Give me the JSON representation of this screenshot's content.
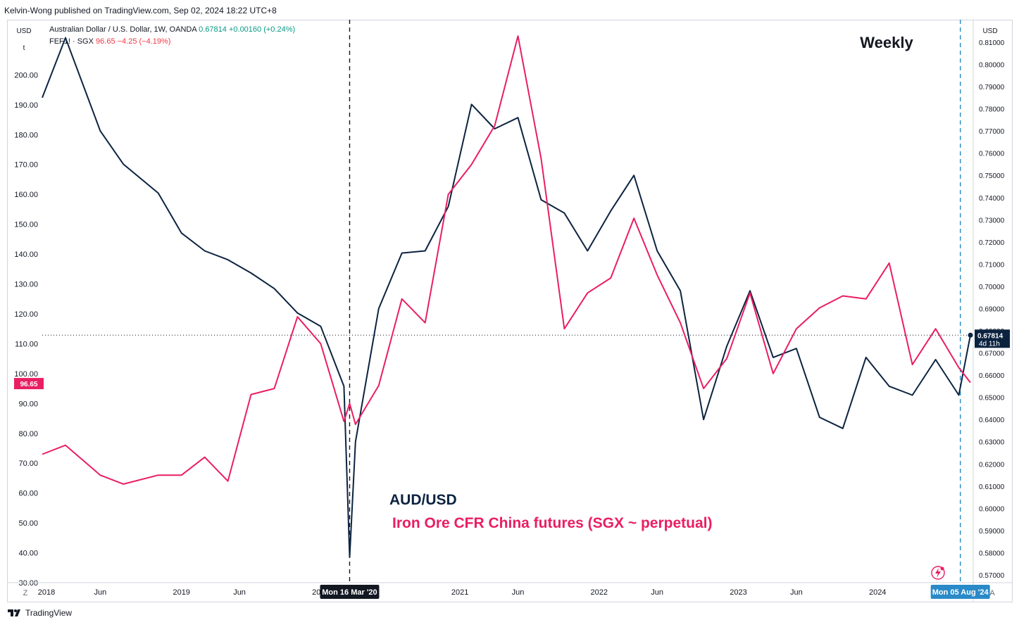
{
  "publisher": "Kelvin-Wong published on TradingView.com, Sep 02, 2024 18:22 UTC+8",
  "left_axis_button": "USD",
  "left_axis_sub": "t",
  "right_axis_button": "USD",
  "legend": {
    "line1_name": "Australian Dollar / U.S. Dollar, 1W, OANDA",
    "line1_price": "0.67814",
    "line1_change": "+0.00160 (+0.24%)",
    "line2_name": "FEF1! · SGX",
    "line2_price": "96.65",
    "line2_change": "−4.25 (−4.19%)"
  },
  "corner_left": "Z",
  "corner_right": "A",
  "footer_brand": "TradingView",
  "colors": {
    "audusd": "#0c2340",
    "iron": "#e91e63",
    "marker": "#2a8ac8",
    "up": "#089981",
    "down": "#f23645"
  },
  "chart_data": {
    "type": "line",
    "title": "Weekly",
    "annotations": [
      "AUD/USD",
      "Iron Ore CFR China futures (SGX ~ perpetual)"
    ],
    "x_tick_labels": [
      "2018",
      "Jun",
      "2019",
      "Jun",
      "2020",
      "Mon 16 Mar '20",
      "2021",
      "Jun",
      "2022",
      "Jun",
      "2023",
      "Jun",
      "2024",
      "Mon 05 Aug '24"
    ],
    "x": [
      "2018-01",
      "2018-03",
      "2018-06",
      "2018-08",
      "2018-11",
      "2019-01",
      "2019-03",
      "2019-05",
      "2019-07",
      "2019-09",
      "2019-11",
      "2020-01",
      "2020-03",
      "2020-03-16",
      "2020-04",
      "2020-06",
      "2020-08",
      "2020-10",
      "2020-12",
      "2021-02",
      "2021-04",
      "2021-06",
      "2021-08",
      "2021-10",
      "2021-12",
      "2022-02",
      "2022-04",
      "2022-06",
      "2022-08",
      "2022-10",
      "2022-12",
      "2023-02",
      "2023-04",
      "2023-06",
      "2023-08",
      "2023-10",
      "2023-12",
      "2024-02",
      "2024-04",
      "2024-06",
      "2024-08",
      "2024-09"
    ],
    "left_axis": {
      "label": "USD",
      "ticks": [
        30,
        40,
        50,
        60,
        70,
        80,
        90,
        100,
        110,
        120,
        130,
        140,
        150,
        160,
        170,
        180,
        190,
        200
      ],
      "ylim": [
        30,
        218
      ]
    },
    "right_axis": {
      "label": "USD",
      "ticks": [
        0.57,
        0.58,
        0.59,
        0.6,
        0.61,
        0.62,
        0.63,
        0.64,
        0.65,
        0.66,
        0.67,
        0.68,
        0.69,
        0.7,
        0.71,
        0.72,
        0.73,
        0.74,
        0.75,
        0.76,
        0.77,
        0.78,
        0.79,
        0.8,
        0.81
      ],
      "tick_labels": [
        "0.57000",
        "0.58000",
        "0.59000",
        "0.60000",
        "0.61000",
        "0.62000",
        "0.63000",
        "0.64000",
        "0.65000",
        "0.66000",
        "0.67000",
        "0.68000",
        "0.69000",
        "0.70000",
        "0.71000",
        "0.72000",
        "0.73000",
        "0.74000",
        "0.75000",
        "0.76000",
        "0.77000",
        "0.78000",
        "0.79000",
        "0.80000",
        "0.81000"
      ],
      "ylim": [
        0.5665,
        0.8195
      ]
    },
    "series": [
      {
        "name": "Australian Dollar / U.S. Dollar, 1W, OANDA",
        "axis": "right",
        "values": [
          0.785,
          0.812,
          0.77,
          0.755,
          0.742,
          0.724,
          0.716,
          0.712,
          0.706,
          0.699,
          0.688,
          0.682,
          0.655,
          0.578,
          0.63,
          0.69,
          0.715,
          0.716,
          0.736,
          0.782,
          0.771,
          0.776,
          0.739,
          0.733,
          0.716,
          0.734,
          0.75,
          0.716,
          0.698,
          0.64,
          0.673,
          0.698,
          0.668,
          0.672,
          0.641,
          0.636,
          0.668,
          0.655,
          0.651,
          0.667,
          0.651,
          0.678
        ]
      },
      {
        "name": "FEF1! · SGX",
        "axis": "left",
        "values": [
          73,
          76,
          66,
          63,
          66,
          66,
          72,
          64,
          93,
          95,
          119,
          110,
          84,
          90,
          83,
          96,
          125,
          117,
          160,
          170,
          183,
          213,
          172,
          115,
          127,
          132,
          152,
          133,
          117,
          95,
          105,
          127,
          100,
          115,
          122,
          126,
          125,
          137,
          103,
          115,
          102,
          97
        ]
      }
    ],
    "last_values": {
      "audusd": "0.67814",
      "audusd_countdown": "4d 11h",
      "iron": "96.65"
    },
    "vertical_markers": [
      "Mon 16 Mar '20",
      "Mon 05 Aug '24"
    ],
    "grid": false
  }
}
